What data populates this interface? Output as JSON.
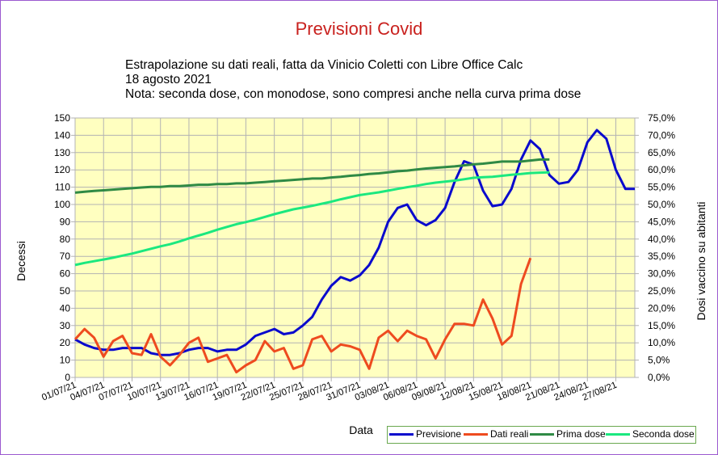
{
  "chart_data": {
    "type": "line",
    "title": "Previsioni Covid",
    "subtitle": [
      "Estrapolazione su dati reali, fatta da Vinicio Coletti con Libre Office Calc",
      "18 agosto 2021",
      "Nota: seconda dose, con monodose, sono compresi anche nella curva prima dose"
    ],
    "xlabel": "Data",
    "ylabel": "Decessi",
    "y2label": "Dosi vaccino su abitanti",
    "ylim": [
      0,
      150
    ],
    "y2lim": [
      0,
      75
    ],
    "yticks": [
      "0",
      "10",
      "20",
      "30",
      "40",
      "50",
      "60",
      "70",
      "80",
      "90",
      "100",
      "110",
      "120",
      "130",
      "140",
      "150"
    ],
    "y2ticks": [
      "0,0%",
      "5,0%",
      "10,0%",
      "15,0%",
      "20,0%",
      "25,0%",
      "30,0%",
      "35,0%",
      "40,0%",
      "45,0%",
      "50,0%",
      "55,0%",
      "60,0%",
      "65,0%",
      "70,0%",
      "75,0%"
    ],
    "xticks": [
      "01/07/21",
      "04/07/21",
      "07/07/21",
      "10/07/21",
      "13/07/21",
      "16/07/21",
      "19/07/21",
      "22/07/21",
      "25/07/21",
      "28/07/21",
      "31/07/21",
      "03/08/21",
      "06/08/21",
      "09/08/21",
      "12/08/21",
      "15/08/21",
      "18/08/21",
      "21/08/21",
      "24/08/21",
      "27/08/21"
    ],
    "x_start": "01/07/21",
    "grid": true,
    "plot_background": "#ffffc0",
    "legend_position": "bottom-right",
    "series": [
      {
        "name": "Previsione",
        "axis": "left",
        "color": "#0a0acd",
        "values": [
          22,
          19,
          17,
          16,
          16,
          17,
          17,
          17,
          14,
          13,
          13,
          14,
          16,
          17,
          17,
          15,
          16,
          16,
          19,
          24,
          26,
          28,
          25,
          26,
          30,
          35,
          45,
          53,
          58,
          56,
          59,
          65,
          75,
          90,
          98,
          100,
          91,
          88,
          91,
          98,
          113,
          125,
          123,
          108,
          99,
          100,
          109,
          126,
          137,
          132,
          117,
          112,
          113,
          120,
          136,
          143,
          138,
          120,
          109,
          109
        ]
      },
      {
        "name": "Dati reali",
        "axis": "left",
        "color": "#ee4b1f",
        "values": [
          22,
          28,
          23,
          12,
          21,
          24,
          14,
          13,
          25,
          12,
          7,
          13,
          20,
          23,
          9,
          11,
          13,
          3,
          7,
          10,
          21,
          15,
          17,
          5,
          7,
          22,
          24,
          15,
          19,
          18,
          16,
          5,
          23,
          27,
          21,
          27,
          24,
          22,
          11,
          22,
          31,
          31,
          30,
          45,
          34,
          19,
          24,
          54,
          69
        ]
      },
      {
        "name": "Prima dose",
        "axis": "right",
        "color": "#2f8a45",
        "values": [
          53.4,
          53.7,
          53.9,
          54.1,
          54.3,
          54.5,
          54.7,
          54.9,
          55.1,
          55.1,
          55.3,
          55.3,
          55.5,
          55.7,
          55.7,
          55.9,
          55.9,
          56.1,
          56.1,
          56.3,
          56.5,
          56.7,
          56.9,
          57.1,
          57.3,
          57.5,
          57.5,
          57.8,
          58.0,
          58.3,
          58.5,
          58.8,
          59.0,
          59.3,
          59.6,
          59.8,
          60.1,
          60.4,
          60.6,
          60.8,
          61.0,
          61.3,
          61.6,
          61.8,
          62.1,
          62.4,
          62.4,
          62.4,
          62.7,
          63.0,
          63.0
        ]
      },
      {
        "name": "Seconda dose",
        "axis": "right",
        "color": "#1be87f",
        "values": [
          32.5,
          33.1,
          33.6,
          34.1,
          34.6,
          35.2,
          35.8,
          36.5,
          37.2,
          37.9,
          38.5,
          39.3,
          40.2,
          41.0,
          41.8,
          42.7,
          43.5,
          44.3,
          44.9,
          45.6,
          46.4,
          47.2,
          47.9,
          48.6,
          49.1,
          49.6,
          50.2,
          50.8,
          51.5,
          52.1,
          52.7,
          53.1,
          53.5,
          54.0,
          54.5,
          55.0,
          55.4,
          55.9,
          56.3,
          56.6,
          56.9,
          57.3,
          57.7,
          57.9,
          58.0,
          58.3,
          58.6,
          58.8,
          59.1,
          59.2,
          59.3
        ]
      }
    ]
  }
}
